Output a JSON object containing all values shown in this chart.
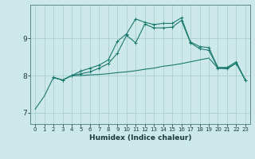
{
  "title": "",
  "xlabel": "Humidex (Indice chaleur)",
  "bg_color": "#cce8e8",
  "grid_color": "#aacfcf",
  "line_color": "#1a7a6e",
  "xlim": [
    -0.5,
    23.5
  ],
  "ylim": [
    6.7,
    9.9
  ],
  "xticks": [
    0,
    1,
    2,
    3,
    4,
    5,
    6,
    7,
    8,
    9,
    10,
    11,
    12,
    13,
    14,
    15,
    16,
    17,
    18,
    19,
    20,
    21,
    22,
    23
  ],
  "yticks": [
    7,
    8,
    9
  ],
  "line1_x": [
    0,
    1,
    2,
    3,
    4,
    5,
    6,
    7,
    8,
    9,
    10,
    11,
    12,
    13,
    14,
    15,
    16,
    17,
    18,
    19,
    20,
    21,
    22,
    23
  ],
  "line1_y": [
    7.1,
    7.45,
    7.95,
    7.88,
    8.0,
    8.0,
    8.02,
    8.03,
    8.05,
    8.08,
    8.1,
    8.13,
    8.17,
    8.2,
    8.25,
    8.28,
    8.32,
    8.37,
    8.42,
    8.47,
    8.2,
    8.18,
    8.33,
    7.88
  ],
  "line2_x": [
    2,
    3,
    4,
    5,
    6,
    7,
    8,
    9,
    10,
    11,
    12,
    13,
    14,
    15,
    16,
    17,
    18,
    19,
    20,
    21,
    22,
    23
  ],
  "line2_y": [
    7.95,
    7.88,
    8.0,
    8.05,
    8.1,
    8.2,
    8.32,
    8.6,
    9.08,
    8.88,
    9.38,
    9.28,
    9.28,
    9.3,
    9.48,
    8.88,
    8.72,
    8.68,
    8.2,
    8.2,
    8.33,
    7.88
  ],
  "line3_x": [
    2,
    3,
    4,
    5,
    6,
    7,
    8,
    9,
    10,
    11,
    12,
    13,
    14,
    15,
    16,
    17,
    18,
    19,
    20,
    21,
    22,
    23
  ],
  "line3_y": [
    7.95,
    7.88,
    8.0,
    8.12,
    8.2,
    8.28,
    8.42,
    8.92,
    9.12,
    9.52,
    9.43,
    9.37,
    9.4,
    9.4,
    9.55,
    8.9,
    8.78,
    8.75,
    8.22,
    8.22,
    8.37,
    7.88
  ]
}
